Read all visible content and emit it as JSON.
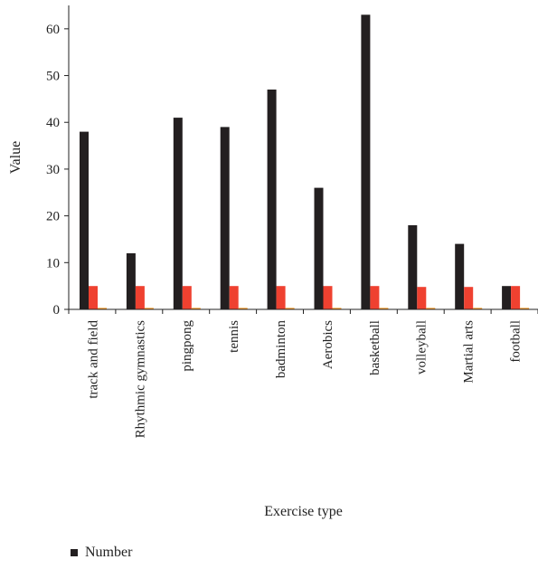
{
  "chart_data": {
    "type": "bar",
    "xlabel": "Exercise type",
    "ylabel": "Value",
    "ylim": [
      0,
      65
    ],
    "yticks": [
      0,
      10,
      20,
      30,
      40,
      50,
      60
    ],
    "categories": [
      "track and field",
      "Rhythmic gymnastics",
      "pingpong",
      "tennis",
      "badminton",
      "Aerobics",
      "basketball",
      "volleyball",
      "Martial arts",
      "football"
    ],
    "series": [
      {
        "name": "Number",
        "color": "#231f20",
        "values": [
          38,
          12,
          41,
          39,
          47,
          26,
          63,
          18,
          14,
          5
        ]
      },
      {
        "color": "#ef4130",
        "values": [
          5,
          5,
          5,
          5,
          5,
          5,
          5,
          4.8,
          4.8,
          5
        ]
      },
      {
        "color": "#f7941d",
        "values": [
          0.3,
          0.3,
          0.3,
          0.3,
          0.3,
          0.3,
          0.3,
          0.3,
          0.3,
          0.3
        ]
      }
    ],
    "grid": false,
    "legend": "bottom-left",
    "legend_entries": [
      "Number"
    ]
  }
}
